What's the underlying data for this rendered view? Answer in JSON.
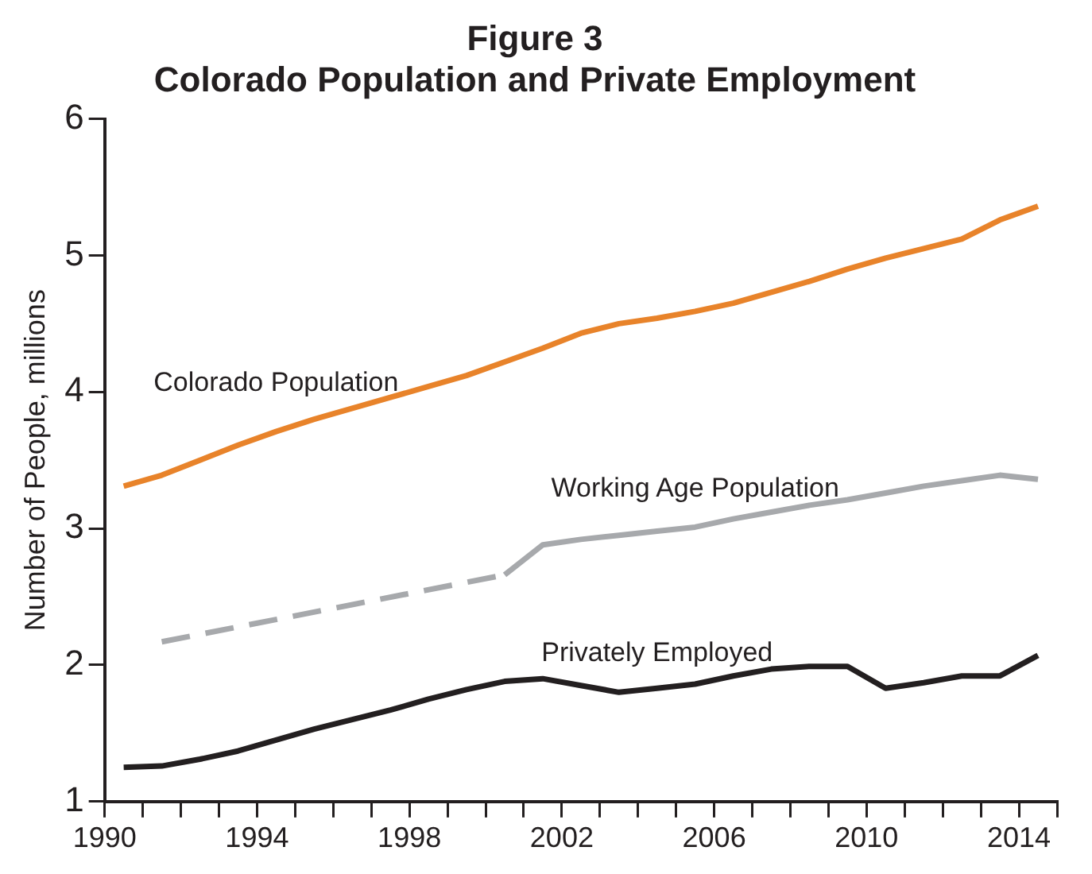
{
  "chart_data": {
    "type": "line",
    "title": "Figure 3",
    "subtitle": "Colorado Population and Private Employment",
    "ylabel": "Number of People, millions",
    "x": [
      1990.5,
      1991.5,
      1992.5,
      1993.5,
      1994.5,
      1995.5,
      1996.5,
      1997.5,
      1998.5,
      1999.5,
      2000.5,
      2001.5,
      2002.5,
      2003.5,
      2004.5,
      2005.5,
      2006.5,
      2007.5,
      2008.5,
      2009.5,
      2010.5,
      2011.5,
      2012.5,
      2013.5,
      2014.5
    ],
    "series": [
      {
        "name": "Colorado Population",
        "color": "#e8832a",
        "values": [
          3.31,
          3.39,
          3.5,
          3.61,
          3.71,
          3.8,
          3.88,
          3.96,
          4.04,
          4.12,
          4.22,
          4.32,
          4.43,
          4.5,
          4.54,
          4.59,
          4.65,
          4.73,
          4.81,
          4.9,
          4.98,
          5.05,
          5.12,
          5.26,
          5.36
        ]
      },
      {
        "color": "#a7a9ac",
        "line_style": "dashed",
        "x": [
          1991.5,
          2000.5
        ],
        "values": [
          2.17,
          2.66
        ]
      },
      {
        "name": "Working Age Population",
        "color": "#a7a9ac",
        "x": [
          2000.5,
          2001.5,
          2002.5,
          2003.5,
          2004.5,
          2005.5,
          2006.5,
          2007.5,
          2008.5,
          2009.5,
          2010.5,
          2011.5,
          2012.5,
          2013.5,
          2014.5
        ],
        "values": [
          2.66,
          2.88,
          2.92,
          2.95,
          2.98,
          3.01,
          3.07,
          3.12,
          3.17,
          3.21,
          3.26,
          3.31,
          3.35,
          3.39,
          3.36
        ]
      },
      {
        "name": "Privately Employed",
        "color": "#231f20",
        "values": [
          1.25,
          1.26,
          1.31,
          1.37,
          1.45,
          1.53,
          1.6,
          1.67,
          1.75,
          1.82,
          1.88,
          1.9,
          1.85,
          1.8,
          1.83,
          1.86,
          1.92,
          1.97,
          1.99,
          1.99,
          1.83,
          1.87,
          1.92,
          1.92,
          2.07
        ]
      }
    ],
    "xlim": [
      1990,
      2015
    ],
    "xticks": [
      1990,
      {
        "value": 1991,
        "label": null
      },
      {
        "value": 1992,
        "label": null
      },
      {
        "value": 1993,
        "label": null
      },
      1994,
      {
        "value": 1995,
        "label": null
      },
      {
        "value": 1996,
        "label": null
      },
      {
        "value": 1997,
        "label": null
      },
      1998,
      {
        "value": 1999,
        "label": null
      },
      {
        "value": 2000,
        "label": null
      },
      {
        "value": 2001,
        "label": null
      },
      2002,
      {
        "value": 2003,
        "label": null
      },
      {
        "value": 2004,
        "label": null
      },
      {
        "value": 2005,
        "label": null
      },
      2006,
      {
        "value": 2007,
        "label": null
      },
      {
        "value": 2008,
        "label": null
      },
      {
        "value": 2009,
        "label": null
      },
      2010,
      {
        "value": 2011,
        "label": null
      },
      {
        "value": 2012,
        "label": null
      },
      {
        "value": 2013,
        "label": null
      },
      2014,
      {
        "value": 2015,
        "label": null
      }
    ],
    "ylim": [
      1,
      6
    ],
    "yticks": [
      1,
      2,
      3,
      4,
      5,
      6
    ],
    "grid": false,
    "legend": false,
    "marker": "none",
    "line_style": "solid"
  }
}
